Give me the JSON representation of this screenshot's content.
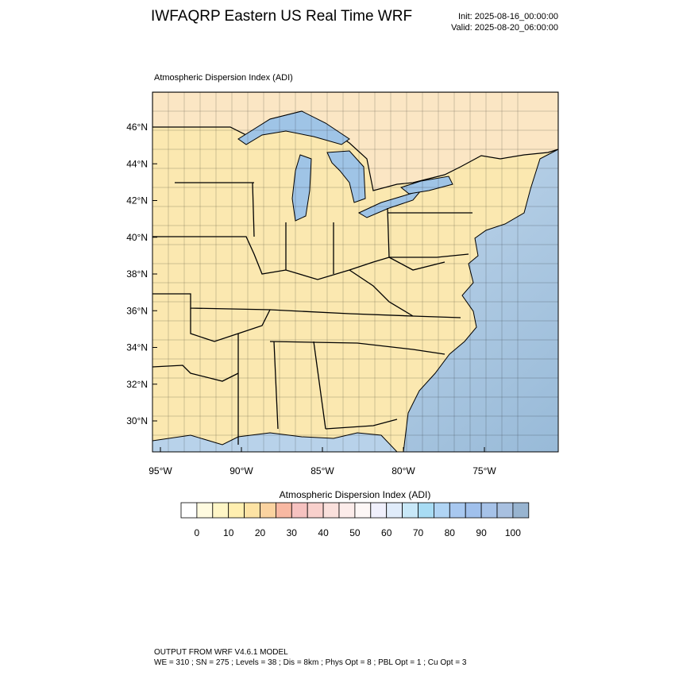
{
  "header": {
    "title": "IWFAQRP Eastern US Real Time WRF",
    "init": "Init: 2025-08-16_00:00:00",
    "valid": "Valid: 2025-08-20_06:00:00"
  },
  "map": {
    "title": "Atmospheric Dispersion Index   (ADI)",
    "lat_labels": [
      "46°N",
      "44°N",
      "42°N",
      "40°N",
      "38°N",
      "36°N",
      "34°N",
      "32°N",
      "30°N"
    ],
    "lon_labels": [
      "95°W",
      "90°W",
      "85°W",
      "80°W",
      "75°W"
    ]
  },
  "colorbar": {
    "title": "Atmospheric Dispersion Index  (ADI)",
    "ticks": [
      0,
      10,
      20,
      30,
      40,
      50,
      60,
      70,
      80,
      90,
      100
    ],
    "colors": [
      "#ffffff",
      "#fffbe0",
      "#fff6c6",
      "#ffefb0",
      "#fde3a4",
      "#fbd3a0",
      "#f8b8a2",
      "#f6c2c0",
      "#f8d0cc",
      "#fae0dc",
      "#fcecea",
      "#fdf7f6",
      "#f0f0fc",
      "#e0ecfa",
      "#c8e8f8",
      "#a8dcf4",
      "#b0d4f4",
      "#a8c8f0",
      "#a0c0ec",
      "#a6c2e8",
      "#a8c0e0",
      "#98b4d0"
    ]
  },
  "footer": {
    "line1": "OUTPUT FROM WRF V4.6.1 MODEL",
    "line2": "WE = 310 ; SN = 275 ; Levels = 38 ; Dis = 8km ; Phys Opt = 8 ; PBL Opt = 1 ; Cu Opt = 3"
  }
}
